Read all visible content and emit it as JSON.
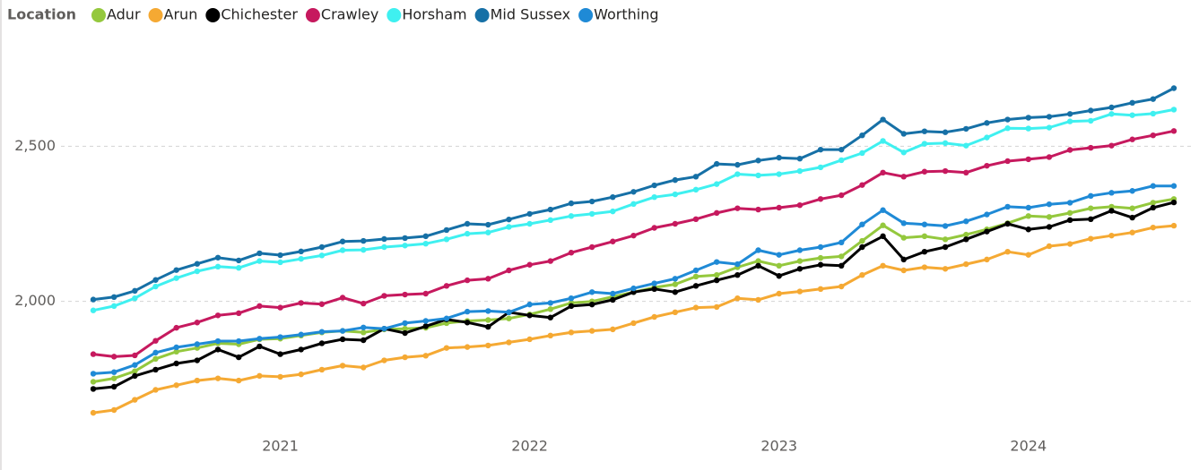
{
  "chart_data": {
    "type": "line",
    "legend_title": "Location",
    "x": [
      "2020-04",
      "2020-05",
      "2020-06",
      "2020-07",
      "2020-08",
      "2020-09",
      "2020-10",
      "2020-11",
      "2020-12",
      "2021-01",
      "2021-02",
      "2021-03",
      "2021-04",
      "2021-05",
      "2021-06",
      "2021-07",
      "2021-08",
      "2021-09",
      "2021-10",
      "2021-11",
      "2021-12",
      "2022-01",
      "2022-02",
      "2022-03",
      "2022-04",
      "2022-05",
      "2022-06",
      "2022-07",
      "2022-08",
      "2022-09",
      "2022-10",
      "2022-11",
      "2022-12",
      "2023-01",
      "2023-02",
      "2023-03",
      "2023-04",
      "2023-05",
      "2023-06",
      "2023-07",
      "2023-08",
      "2023-09",
      "2023-10",
      "2023-11",
      "2023-12",
      "2024-01",
      "2024-02",
      "2024-03",
      "2024-04",
      "2024-05",
      "2024-06",
      "2024-07",
      "2024-08"
    ],
    "xticks": [
      2021,
      2022,
      2023,
      2024
    ],
    "ylim": [
      1500,
      2850
    ],
    "yticks": [
      {
        "value": 2000,
        "label": "2,000"
      },
      {
        "value": 2500,
        "label": "2,500"
      }
    ],
    "grid": true,
    "legend": "top-left",
    "series": [
      {
        "name": "Adur",
        "color": "#94c83d",
        "values": [
          1741,
          1752,
          1775,
          1815,
          1838,
          1850,
          1865,
          1862,
          1878,
          1880,
          1890,
          1900,
          1905,
          1900,
          1910,
          1912,
          1915,
          1930,
          1937,
          1940,
          1945,
          1958,
          1975,
          1995,
          2000,
          2015,
          2030,
          2045,
          2055,
          2080,
          2085,
          2110,
          2130,
          2115,
          2130,
          2140,
          2145,
          2195,
          2245,
          2205,
          2210,
          2200,
          2215,
          2232,
          2252,
          2275,
          2272,
          2285,
          2300,
          2305,
          2300,
          2318,
          2330
        ]
      },
      {
        "name": "Arun",
        "color": "#f5a933",
        "values": [
          1641,
          1650,
          1683,
          1715,
          1730,
          1745,
          1752,
          1745,
          1760,
          1757,
          1765,
          1780,
          1793,
          1787,
          1810,
          1820,
          1825,
          1850,
          1853,
          1858,
          1868,
          1878,
          1890,
          1900,
          1905,
          1910,
          1930,
          1950,
          1965,
          1980,
          1982,
          2010,
          2005,
          2025,
          2032,
          2040,
          2048,
          2085,
          2115,
          2100,
          2110,
          2105,
          2120,
          2135,
          2160,
          2150,
          2178,
          2185,
          2202,
          2212,
          2222,
          2238,
          2244
        ]
      },
      {
        "name": "Chichester",
        "color": "#000000",
        "values": [
          1718,
          1725,
          1760,
          1780,
          1800,
          1810,
          1845,
          1820,
          1855,
          1830,
          1845,
          1865,
          1878,
          1875,
          1912,
          1898,
          1920,
          1942,
          1932,
          1918,
          1965,
          1955,
          1948,
          1985,
          1990,
          2005,
          2030,
          2040,
          2030,
          2050,
          2068,
          2085,
          2115,
          2082,
          2105,
          2118,
          2115,
          2175,
          2210,
          2135,
          2160,
          2175,
          2200,
          2225,
          2250,
          2232,
          2240,
          2262,
          2265,
          2292,
          2270,
          2302,
          2319
        ]
      },
      {
        "name": "Crawley",
        "color": "#c6195e",
        "values": [
          1830,
          1822,
          1826,
          1873,
          1915,
          1932,
          1955,
          1962,
          1985,
          1980,
          1995,
          1991,
          2012,
          1993,
          2018,
          2022,
          2025,
          2050,
          2068,
          2073,
          2100,
          2118,
          2130,
          2157,
          2175,
          2193,
          2212,
          2237,
          2250,
          2265,
          2285,
          2300,
          2296,
          2302,
          2310,
          2330,
          2342,
          2375,
          2415,
          2402,
          2418,
          2420,
          2415,
          2437,
          2452,
          2458,
          2465,
          2488,
          2495,
          2502,
          2522,
          2535,
          2549
        ]
      },
      {
        "name": "Horsham",
        "color": "#3ff0f0",
        "values": [
          1971,
          1985,
          2010,
          2048,
          2075,
          2097,
          2112,
          2108,
          2130,
          2126,
          2137,
          2148,
          2165,
          2166,
          2175,
          2180,
          2186,
          2200,
          2218,
          2222,
          2240,
          2250,
          2262,
          2275,
          2282,
          2290,
          2314,
          2336,
          2345,
          2360,
          2378,
          2410,
          2406,
          2410,
          2420,
          2432,
          2455,
          2478,
          2517,
          2480,
          2508,
          2510,
          2502,
          2528,
          2558,
          2557,
          2560,
          2580,
          2582,
          2604,
          2600,
          2605,
          2618
        ]
      },
      {
        "name": "Mid Sussex",
        "color": "#1670a6",
        "values": [
          2006,
          2014,
          2034,
          2069,
          2101,
          2121,
          2141,
          2132,
          2155,
          2149,
          2161,
          2175,
          2193,
          2195,
          2201,
          2204,
          2210,
          2230,
          2250,
          2247,
          2264,
          2282,
          2296,
          2316,
          2322,
          2336,
          2353,
          2374,
          2391,
          2402,
          2443,
          2440,
          2454,
          2463,
          2460,
          2489,
          2489,
          2535,
          2586,
          2540,
          2548,
          2545,
          2556,
          2575,
          2586,
          2592,
          2595,
          2604,
          2615,
          2625,
          2640,
          2652,
          2687
        ]
      },
      {
        "name": "Worthing",
        "color": "#1f8ad6",
        "values": [
          1767,
          1772,
          1795,
          1835,
          1852,
          1862,
          1872,
          1872,
          1880,
          1885,
          1893,
          1902,
          1905,
          1916,
          1912,
          1930,
          1937,
          1945,
          1967,
          1969,
          1965,
          1990,
          1995,
          2010,
          2030,
          2025,
          2042,
          2058,
          2073,
          2100,
          2127,
          2120,
          2165,
          2150,
          2165,
          2175,
          2190,
          2248,
          2294,
          2252,
          2248,
          2243,
          2258,
          2280,
          2305,
          2302,
          2313,
          2318,
          2340,
          2350,
          2356,
          2372,
          2372
        ]
      }
    ]
  }
}
